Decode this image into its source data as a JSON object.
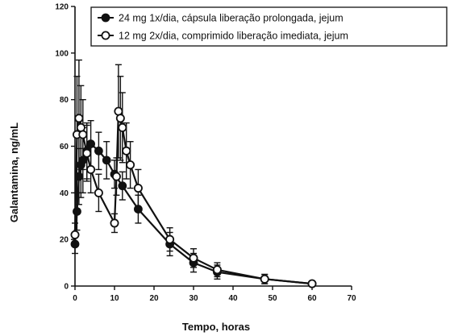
{
  "chart_data": {
    "type": "line",
    "xlabel": "Tempo, horas",
    "ylabel": "Galantamina, ng/mL",
    "xlim": [
      0,
      70
    ],
    "ylim": [
      0,
      120
    ],
    "xticks": [
      "0",
      "10",
      "20",
      "30",
      "40",
      "50",
      "60",
      "70"
    ],
    "yticks": [
      "0",
      "20",
      "40",
      "60",
      "80",
      "100",
      "120"
    ],
    "grid": false,
    "legend_position": "top",
    "series": [
      {
        "name": "24 mg 1x/dia, cápsula liberação prolongada, jejum",
        "marker": "filled-circle",
        "color": "#111111",
        "x": [
          0,
          0.5,
          1,
          1.5,
          2,
          3,
          4,
          6,
          8,
          10,
          12,
          16,
          24,
          30,
          36,
          48,
          60
        ],
        "y": [
          18,
          32,
          47,
          52,
          54,
          58,
          61,
          58,
          54,
          48,
          43,
          33,
          18,
          10,
          6,
          3,
          1
        ],
        "error": [
          4,
          8,
          12,
          14,
          14,
          12,
          10,
          8,
          8,
          6,
          6,
          6,
          5,
          4,
          3,
          2,
          1
        ]
      },
      {
        "name": "12 mg 2x/dia, comprimido liberação imediata, jejum",
        "marker": "open-circle",
        "color": "#111111",
        "x": [
          0,
          0.5,
          1,
          1.5,
          2,
          3,
          4,
          6,
          10,
          10.5,
          11,
          11.5,
          12,
          13,
          14,
          16,
          24,
          30,
          36,
          48,
          60
        ],
        "y": [
          22,
          65,
          72,
          68,
          65,
          57,
          50,
          40,
          27,
          47,
          75,
          72,
          68,
          58,
          52,
          42,
          20,
          12,
          7,
          3,
          1
        ],
        "error": [
          5,
          25,
          25,
          18,
          15,
          12,
          10,
          8,
          4,
          8,
          20,
          18,
          15,
          12,
          10,
          8,
          5,
          4,
          3,
          2,
          1
        ]
      }
    ]
  }
}
